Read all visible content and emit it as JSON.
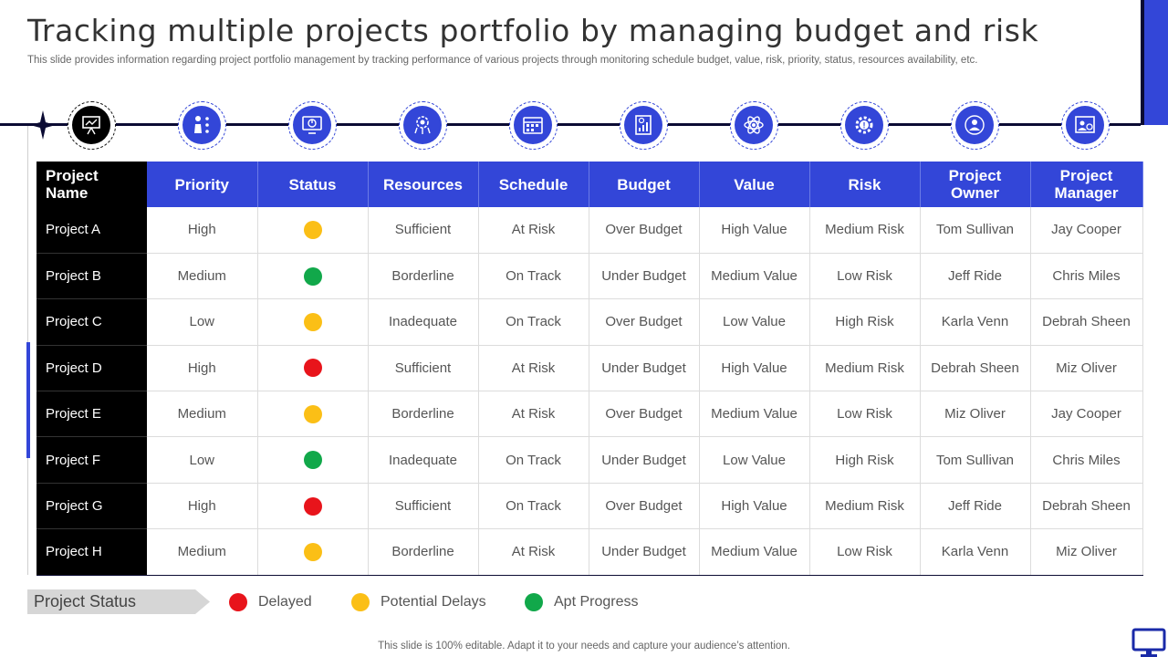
{
  "header": {
    "title": "Tracking multiple projects portfolio by managing budget and risk",
    "subtitle": "This slide provides information regarding project portfolio management by tracking performance of various projects through monitoring schedule budget, value, risk, priority,  status, resources availability, etc."
  },
  "icons": [
    "presentation-board-icon",
    "priority-icon",
    "status-monitor-icon",
    "resources-gear-icon",
    "schedule-calendar-icon",
    "budget-report-icon",
    "value-atom-icon",
    "risk-gear-icon",
    "project-owner-icon",
    "project-manager-icon"
  ],
  "colors": {
    "accent": "#3346d8",
    "dark": "#000000",
    "delayed": "#e8141b",
    "potential_delays": "#fbbf16",
    "apt_progress": "#11a84a"
  },
  "table": {
    "headers": {
      "name": "Project Name",
      "priority": "Priority",
      "status": "Status",
      "resources": "Resources",
      "schedule": "Schedule",
      "budget": "Budget",
      "value": "Value",
      "risk": "Risk",
      "owner": "Project Owner",
      "manager": "Project Manager"
    },
    "rows": [
      {
        "name": "Project A",
        "priority": "High",
        "status": "potential_delays",
        "resources": "Sufficient",
        "schedule": "At Risk",
        "budget": "Over Budget",
        "value": "High Value",
        "risk": "Medium Risk",
        "owner": "Tom Sullivan",
        "manager": "Jay Cooper"
      },
      {
        "name": "Project B",
        "priority": "Medium",
        "status": "apt_progress",
        "resources": "Borderline",
        "schedule": "On Track",
        "budget": "Under Budget",
        "value": "Medium Value",
        "risk": "Low Risk",
        "owner": "Jeff Ride",
        "manager": "Chris Miles"
      },
      {
        "name": "Project C",
        "priority": "Low",
        "status": "potential_delays",
        "resources": "Inadequate",
        "schedule": "On Track",
        "budget": "Over Budget",
        "value": "Low Value",
        "risk": "High Risk",
        "owner": "Karla Venn",
        "manager": "Debrah Sheen"
      },
      {
        "name": "Project D",
        "priority": "High",
        "status": "delayed",
        "resources": "Sufficient",
        "schedule": "At Risk",
        "budget": "Under Budget",
        "value": "High Value",
        "risk": "Medium Risk",
        "owner": "Debrah Sheen",
        "manager": "Miz Oliver"
      },
      {
        "name": "Project E",
        "priority": "Medium",
        "status": "potential_delays",
        "resources": "Borderline",
        "schedule": "At Risk",
        "budget": "Over Budget",
        "value": "Medium Value",
        "risk": "Low Risk",
        "owner": "Miz Oliver",
        "manager": "Jay Cooper"
      },
      {
        "name": "Project F",
        "priority": "Low",
        "status": "apt_progress",
        "resources": "Inadequate",
        "schedule": "On Track",
        "budget": "Under Budget",
        "value": "Low Value",
        "risk": "High Risk",
        "owner": "Tom Sullivan",
        "manager": "Chris Miles"
      },
      {
        "name": "Project G",
        "priority": "High",
        "status": "delayed",
        "resources": "Sufficient",
        "schedule": "On Track",
        "budget": "Over Budget",
        "value": "High Value",
        "risk": "Medium Risk",
        "owner": "Jeff Ride",
        "manager": "Debrah Sheen"
      },
      {
        "name": "Project H",
        "priority": "Medium",
        "status": "potential_delays",
        "resources": "Borderline",
        "schedule": "At Risk",
        "budget": "Under Budget",
        "value": "Medium Value",
        "risk": "Low Risk",
        "owner": "Karla Venn",
        "manager": "Miz Oliver"
      }
    ]
  },
  "legend": {
    "title": "Project Status",
    "delayed": "Delayed",
    "potential_delays": "Potential Delays",
    "apt_progress": "Apt Progress"
  },
  "footer": "This slide is 100% editable. Adapt it to your needs and capture your audience’s attention."
}
